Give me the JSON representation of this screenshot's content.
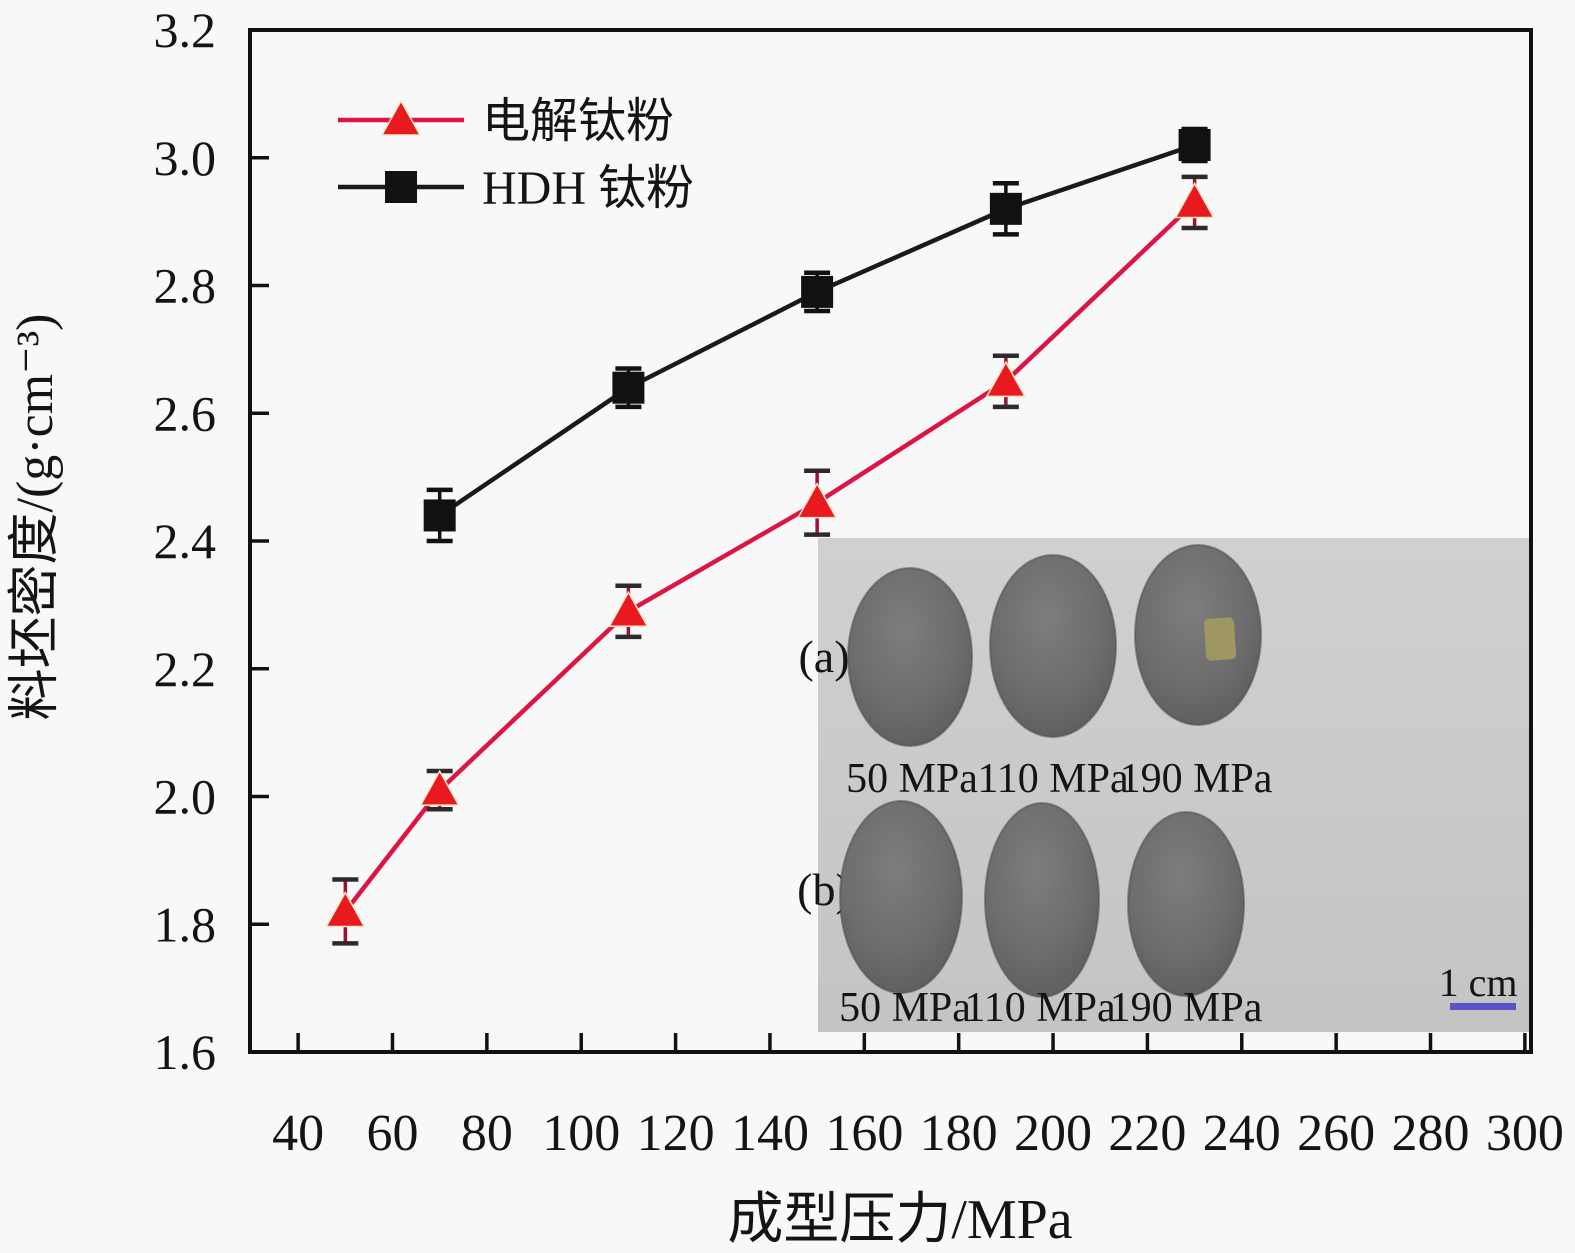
{
  "chart_data": {
    "type": "line",
    "title": "",
    "xlabel": "成型压力/MPa",
    "ylabel": "料坯密度/(g·cm⁻³)",
    "xlim": [
      29.8,
      301.3
    ],
    "ylim": [
      1.6,
      3.2
    ],
    "xticks": [
      40,
      60,
      80,
      100,
      120,
      140,
      160,
      180,
      200,
      220,
      240,
      260,
      280,
      300
    ],
    "yticks": [
      1.6,
      1.8,
      2.0,
      2.2,
      2.4,
      2.6,
      2.8,
      3.0,
      3.2
    ],
    "grid": false,
    "legend_position": "top-left",
    "series": [
      {
        "name": "电解钛粉",
        "marker": "triangle",
        "line_color": "#dd1545",
        "marker_color": "#e8191f",
        "marker_halo": "#f6e7c6",
        "error_color": "#9e1130",
        "error_cap_color": "#2e2a2b",
        "x": [
          50,
          70,
          110,
          150,
          190,
          230
        ],
        "y": [
          1.82,
          2.01,
          2.29,
          2.46,
          2.65,
          2.93
        ],
        "yerr": [
          0.05,
          0.03,
          0.04,
          0.05,
          0.04,
          0.04
        ]
      },
      {
        "name": "HDH 钛粉",
        "marker": "square",
        "line_color": "#1a1a1a",
        "marker_color": "#111111",
        "marker_halo": "#111111",
        "error_color": "#111111",
        "error_cap_color": "#111111",
        "x": [
          70,
          110,
          150,
          190,
          230
        ],
        "y": [
          2.44,
          2.64,
          2.79,
          2.92,
          3.02
        ],
        "yerr": [
          0.04,
          0.03,
          0.03,
          0.04,
          0.025
        ]
      }
    ]
  },
  "inset": {
    "panel_bg_top": "#d0d0d0",
    "panel_bg_bottom": "#c4c4c4",
    "disc_color": "#6d6d6d",
    "disc_edge": "#4f4f4f",
    "rows": [
      {
        "label": "(a)",
        "pressures": [
          "50 MPa",
          "110 MPa",
          "190 MPa"
        ]
      },
      {
        "label": "(b)",
        "pressures": [
          "50 MPa",
          "110 MPa",
          "190 MPa"
        ]
      }
    ],
    "scale_bar": {
      "label": "1 cm",
      "color": "#5b51c9"
    }
  }
}
